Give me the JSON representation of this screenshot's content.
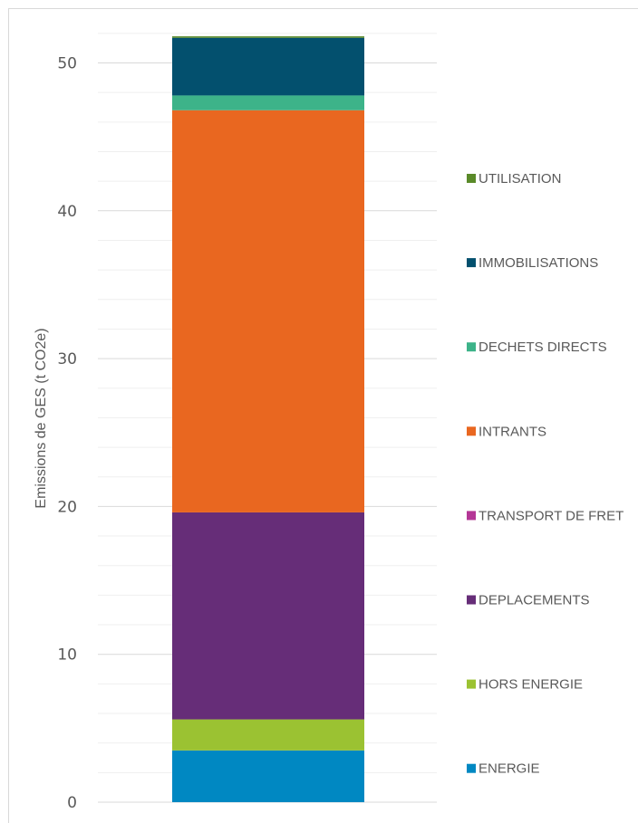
{
  "chart_data": {
    "type": "bar",
    "stacked": true,
    "categories": [
      ""
    ],
    "ylabel": "Emissions de GES (t CO2e)",
    "xlabel": "",
    "ylim": [
      0,
      52
    ],
    "yticks": [
      "0",
      "10",
      "20",
      "30",
      "40",
      "50"
    ],
    "minor_gridlines_every": 2,
    "grid": true,
    "legend_position": "right",
    "series": [
      {
        "name": "ENERGIE",
        "values": [
          3.5
        ],
        "color": "#0088C2"
      },
      {
        "name": "HORS ENERGIE",
        "values": [
          2.1
        ],
        "color": "#9BC232"
      },
      {
        "name": "DEPLACEMENTS",
        "values": [
          14.0
        ],
        "color": "#662D78"
      },
      {
        "name": "TRANSPORT DE FRET",
        "values": [
          0.0
        ],
        "color": "#B43696"
      },
      {
        "name": "INTRANTS",
        "values": [
          27.2
        ],
        "color": "#E96720"
      },
      {
        "name": "DECHETS DIRECTS",
        "values": [
          1.0
        ],
        "color": "#3DB389"
      },
      {
        "name": "IMMOBILISATIONS",
        "values": [
          3.9
        ],
        "color": "#03506E"
      },
      {
        "name": "UTILISATION",
        "values": [
          0.1
        ],
        "color": "#5A8A29"
      }
    ]
  }
}
